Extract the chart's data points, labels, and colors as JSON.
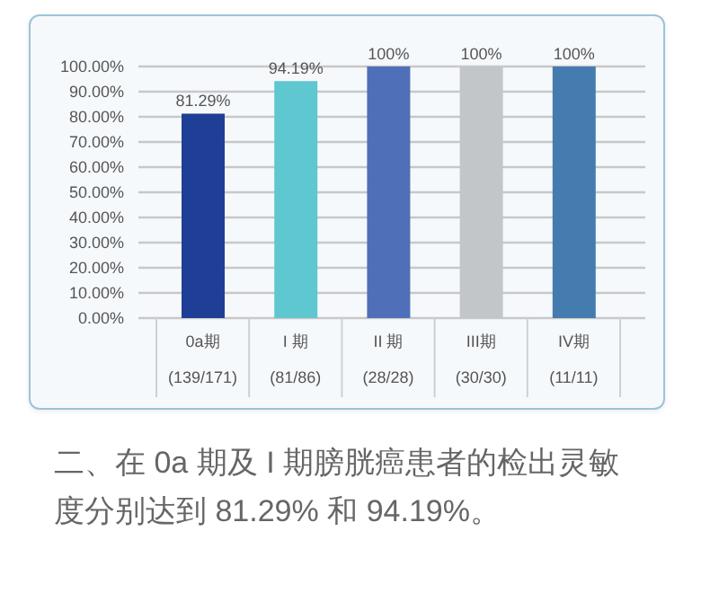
{
  "chart_data": {
    "type": "bar",
    "categories": [
      "0a期\n(139/171)",
      "I 期\n(81/86)",
      "II 期\n(28/28)",
      "III期\n(30/30)",
      "IV期\n(11/11)"
    ],
    "values": [
      81.29,
      94.19,
      100,
      100,
      100
    ],
    "colors": [
      "#1f3f96",
      "#5ec7d0",
      "#4f6fb8",
      "#c3c6c9",
      "#457cb0"
    ],
    "value_labels": [
      "81.29%",
      "94.19%",
      "100%",
      "100%",
      "100%"
    ],
    "ylim": [
      0,
      100
    ],
    "yticks": [
      {
        "value": 0,
        "label": "0.00%"
      },
      {
        "value": 10,
        "label": "10.00%"
      },
      {
        "value": 20,
        "label": "20.00%"
      },
      {
        "value": 30,
        "label": "30.00%"
      },
      {
        "value": 40,
        "label": "40.00%"
      },
      {
        "value": 50,
        "label": "50.00%"
      },
      {
        "value": 60,
        "label": "60.00%"
      },
      {
        "value": 70,
        "label": "70.00%"
      },
      {
        "value": 80,
        "label": "80.00%"
      },
      {
        "value": 90,
        "label": "90.00%"
      },
      {
        "value": 100,
        "label": "100.00%"
      }
    ],
    "grid": "y",
    "annotations": [
      "二、在 0a 期及 I 期膀胱癌患者的检出灵敏度分别达到 81.29% 和 94.19%。"
    ]
  }
}
